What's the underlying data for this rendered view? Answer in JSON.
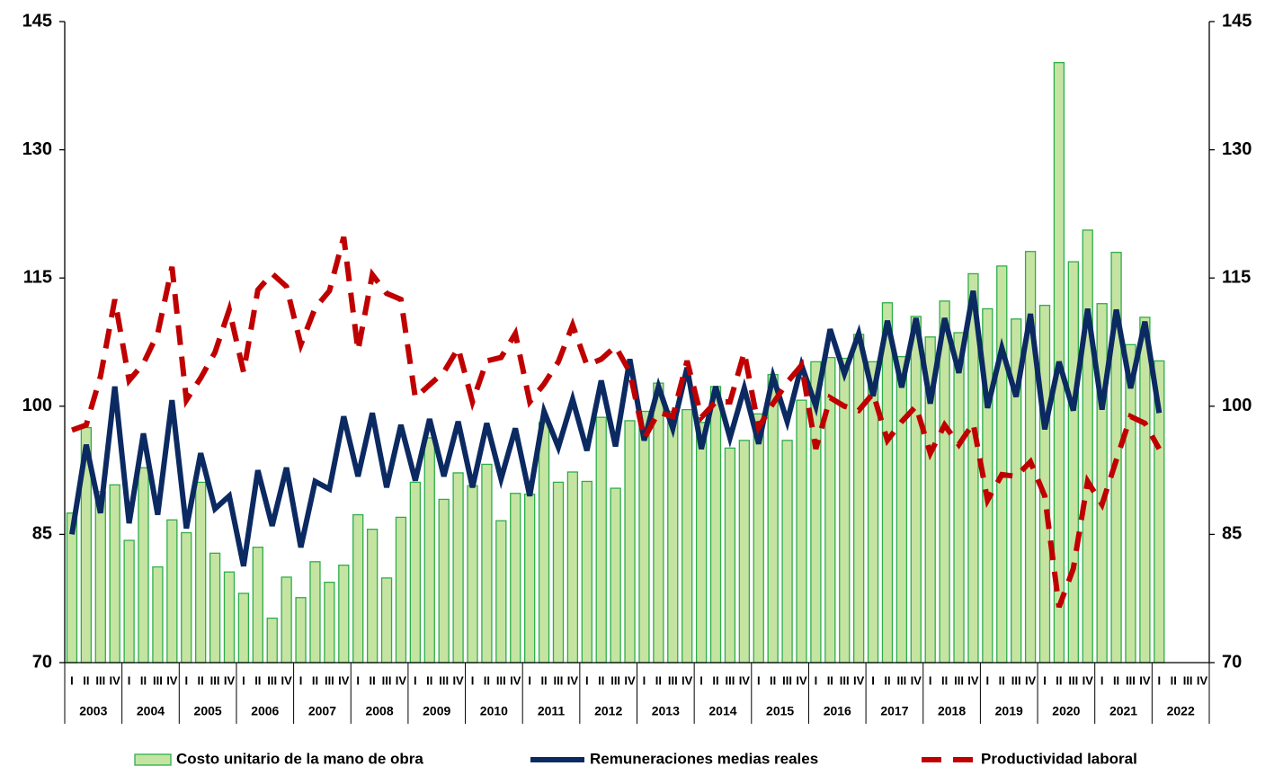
{
  "chart_data": {
    "type": "combo",
    "categories": [
      "I",
      "II",
      "III",
      "IV",
      "I",
      "II",
      "III",
      "IV",
      "I",
      "II",
      "III",
      "IV",
      "I",
      "II",
      "III",
      "IV",
      "I",
      "II",
      "III",
      "IV",
      "I",
      "II",
      "III",
      "IV",
      "I",
      "II",
      "III",
      "IV",
      "I",
      "II",
      "III",
      "IV",
      "I",
      "II",
      "III",
      "IV",
      "I",
      "II",
      "III",
      "IV",
      "I",
      "II",
      "III",
      "IV",
      "I",
      "II",
      "III",
      "IV",
      "I",
      "II",
      "III",
      "IV",
      "I",
      "II",
      "III",
      "IV",
      "I",
      "II",
      "III",
      "IV",
      "I",
      "II",
      "III",
      "IV",
      "I",
      "II",
      "III",
      "IV",
      "I",
      "II",
      "III",
      "IV",
      "I",
      "II",
      "III",
      "IV",
      "I",
      "II",
      "III",
      "IV"
    ],
    "groups": [
      "2003",
      "2004",
      "2005",
      "2006",
      "2007",
      "2008",
      "2009",
      "2010",
      "2011",
      "2012",
      "2013",
      "2014",
      "2015",
      "2016",
      "2017",
      "2018",
      "2019",
      "2020",
      "2021",
      "2022"
    ],
    "series": [
      {
        "name": "Costo unitario de la mano de obra",
        "type": "bar",
        "color": "#c5e4a2",
        "edge_color": "#2eae4a",
        "values": [
          87.5,
          97.5,
          90,
          90.8,
          84.3,
          92.8,
          81.2,
          86.7,
          85.2,
          91.1,
          82.8,
          80.6,
          78.1,
          83.5,
          75.2,
          80.0,
          77.6,
          81.8,
          79.4,
          81.4,
          87.3,
          85.6,
          79.9,
          87.0,
          91.1,
          96.3,
          89.1,
          92.2,
          90.7,
          93.2,
          86.6,
          89.8,
          89.7,
          98.1,
          91.1,
          92.3,
          91.2,
          98.7,
          90.4,
          98.3,
          99.4,
          102.7,
          99.4,
          99.6,
          98.1,
          102.3,
          95.1,
          96.0,
          99.1,
          103.7,
          96.0,
          100.7,
          105.2,
          105.7,
          105.6,
          108.4,
          105.2,
          112.1,
          105.8,
          110.5,
          108.1,
          112.3,
          108.6,
          115.5,
          111.4,
          116.4,
          110.2,
          118.1,
          111.8,
          140.2,
          116.9,
          120.6,
          112.0,
          118.0,
          107.2,
          110.4,
          105.3,
          null,
          null,
          null
        ]
      },
      {
        "name": "Remuneraciones medias reales",
        "type": "line",
        "color": "#0c2a62",
        "values": [
          85,
          95.5,
          87.5,
          102.3,
          86.3,
          96.8,
          87.3,
          100.7,
          85.7,
          94.5,
          88,
          89.5,
          81.3,
          92.5,
          86,
          92.8,
          83.5,
          91.2,
          90.3,
          98.8,
          91.8,
          99.2,
          90.5,
          97.8,
          91.3,
          98.5,
          91.8,
          98.2,
          90.5,
          98,
          91.5,
          97.4,
          89.5,
          99.4,
          95.2,
          100.8,
          94.8,
          103,
          95.3,
          105.5,
          96,
          102.3,
          97.4,
          104.5,
          95,
          102.3,
          96.3,
          102.1,
          95.6,
          103.5,
          98.2,
          104.8,
          100,
          109,
          103.8,
          108.5,
          101.2,
          110,
          102.2,
          110.3,
          100.3,
          110.3,
          103.9,
          113.5,
          99.8,
          106.8,
          101.1,
          110.8,
          97.3,
          105.2,
          99.5,
          111.4,
          99.6,
          111.3,
          102.1,
          109.9,
          99.2,
          null,
          null,
          null
        ]
      },
      {
        "name": "Productividad laboral",
        "type": "line",
        "line_style": "dashed",
        "color": "#c00000",
        "values": [
          97.2,
          97.8,
          103.5,
          112.5,
          103,
          105,
          108.5,
          116.3,
          100.7,
          103.3,
          106.3,
          111.3,
          104,
          113.6,
          115.5,
          114,
          107.2,
          111.5,
          113.5,
          119.8,
          106.5,
          115.4,
          113.2,
          112.5,
          101,
          102.5,
          104,
          106.8,
          100.5,
          105.3,
          105.7,
          108.5,
          100.5,
          102.6,
          105.2,
          109.5,
          104.8,
          105.5,
          107,
          104,
          96.2,
          99.3,
          98.8,
          105.3,
          98.7,
          100.5,
          100.5,
          106.3,
          97.5,
          100.3,
          102.8,
          104.8,
          95,
          101,
          100,
          99.5,
          101.5,
          96,
          98.2,
          100,
          94.5,
          97.8,
          95.5,
          98,
          89,
          92,
          91.8,
          93.5,
          89.5,
          76.5,
          81,
          91.2,
          88.5,
          93.7,
          98.8,
          98,
          95,
          null,
          null,
          null
        ]
      }
    ],
    "ylim": [
      70,
      145
    ],
    "yticks": [
      70,
      85,
      100,
      115,
      130,
      145
    ],
    "y2lim": [
      70,
      145
    ],
    "y2ticks": [
      70,
      85,
      100,
      115,
      130,
      145
    ]
  }
}
